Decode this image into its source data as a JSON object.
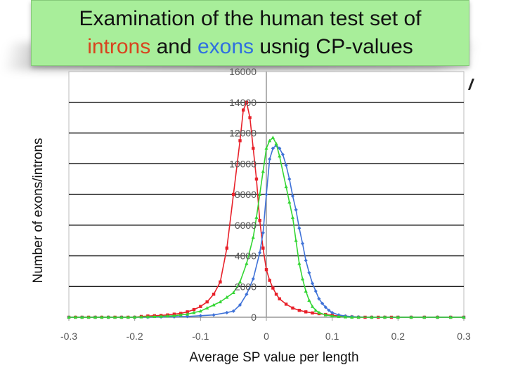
{
  "title": {
    "line1": "Examination of the human test set of",
    "line2_word1": "introns",
    "line2_and": " and ",
    "line2_word2": "exons",
    "line2_rest": " usnig CP-values"
  },
  "colors": {
    "title_bg": "#a8ee9a",
    "introns": "#d8441e",
    "exons": "#2f6fe0",
    "series_red": "#e8212a",
    "series_blue": "#3f72d8",
    "series_green": "#34d634"
  },
  "chart_data": {
    "type": "line",
    "xlabel": "Average SP value per length",
    "ylabel": "Number of exons/introns",
    "xlim": [
      -0.3,
      0.3
    ],
    "ylim": [
      0,
      16000
    ],
    "xticks": [
      "-0.3",
      "-0.2",
      "-0.1",
      "0",
      "0.1",
      "0.2",
      "0.3"
    ],
    "yticks": [
      "0",
      "2000",
      "4000",
      "6000",
      "8000",
      "10000",
      "12000",
      "14000",
      "16000"
    ],
    "grid": "horizontal",
    "legend": "none",
    "series": [
      {
        "color": "#e8212a",
        "marker": "square",
        "points": [
          [
            -0.3,
            0
          ],
          [
            -0.29,
            0
          ],
          [
            -0.28,
            0
          ],
          [
            -0.27,
            0
          ],
          [
            -0.26,
            0
          ],
          [
            -0.25,
            0
          ],
          [
            -0.24,
            0
          ],
          [
            -0.23,
            0
          ],
          [
            -0.22,
            0
          ],
          [
            -0.21,
            0
          ],
          [
            -0.2,
            0
          ],
          [
            -0.19,
            50
          ],
          [
            -0.18,
            80
          ],
          [
            -0.17,
            100
          ],
          [
            -0.16,
            120
          ],
          [
            -0.15,
            150
          ],
          [
            -0.14,
            200
          ],
          [
            -0.13,
            250
          ],
          [
            -0.12,
            350
          ],
          [
            -0.11,
            500
          ],
          [
            -0.1,
            700
          ],
          [
            -0.09,
            1000
          ],
          [
            -0.08,
            1500
          ],
          [
            -0.07,
            2300
          ],
          [
            -0.06,
            4500
          ],
          [
            -0.05,
            8000
          ],
          [
            -0.04,
            11500
          ],
          [
            -0.035,
            13500
          ],
          [
            -0.03,
            14000
          ],
          [
            -0.025,
            13000
          ],
          [
            -0.02,
            11000
          ],
          [
            -0.015,
            9000
          ],
          [
            -0.01,
            6300
          ],
          [
            -0.005,
            4500
          ],
          [
            0,
            3100
          ],
          [
            0.005,
            2400
          ],
          [
            0.01,
            1900
          ],
          [
            0.015,
            1500
          ],
          [
            0.02,
            1200
          ],
          [
            0.03,
            850
          ],
          [
            0.04,
            600
          ],
          [
            0.05,
            450
          ],
          [
            0.06,
            350
          ],
          [
            0.07,
            280
          ],
          [
            0.08,
            230
          ],
          [
            0.09,
            180
          ],
          [
            0.1,
            130
          ],
          [
            0.11,
            80
          ],
          [
            0.12,
            50
          ],
          [
            0.13,
            20
          ],
          [
            0.14,
            0
          ],
          [
            0.15,
            0
          ],
          [
            0.16,
            0
          ],
          [
            0.17,
            0
          ],
          [
            0.18,
            0
          ],
          [
            0.19,
            0
          ],
          [
            0.2,
            0
          ],
          [
            0.22,
            0
          ],
          [
            0.24,
            0
          ],
          [
            0.26,
            0
          ],
          [
            0.28,
            0
          ],
          [
            0.3,
            0
          ]
        ]
      },
      {
        "color": "#3f72d8",
        "marker": "diamond",
        "points": [
          [
            -0.3,
            0
          ],
          [
            -0.28,
            0
          ],
          [
            -0.26,
            0
          ],
          [
            -0.24,
            0
          ],
          [
            -0.22,
            0
          ],
          [
            -0.2,
            0
          ],
          [
            -0.18,
            0
          ],
          [
            -0.16,
            20
          ],
          [
            -0.14,
            30
          ],
          [
            -0.12,
            50
          ],
          [
            -0.1,
            100
          ],
          [
            -0.08,
            150
          ],
          [
            -0.06,
            300
          ],
          [
            -0.05,
            400
          ],
          [
            -0.04,
            800
          ],
          [
            -0.03,
            1500
          ],
          [
            -0.02,
            2500
          ],
          [
            -0.01,
            4200
          ],
          [
            -0.005,
            5500
          ],
          [
            0,
            8000
          ],
          [
            0.005,
            10300
          ],
          [
            0.01,
            11000
          ],
          [
            0.015,
            11200
          ],
          [
            0.02,
            11000
          ],
          [
            0.025,
            10600
          ],
          [
            0.03,
            9900
          ],
          [
            0.035,
            9000
          ],
          [
            0.04,
            7900
          ],
          [
            0.045,
            7000
          ],
          [
            0.05,
            5800
          ],
          [
            0.055,
            4800
          ],
          [
            0.06,
            3700
          ],
          [
            0.065,
            2900
          ],
          [
            0.07,
            2200
          ],
          [
            0.075,
            1700
          ],
          [
            0.08,
            1200
          ],
          [
            0.085,
            900
          ],
          [
            0.09,
            650
          ],
          [
            0.095,
            450
          ],
          [
            0.1,
            300
          ],
          [
            0.11,
            150
          ],
          [
            0.12,
            80
          ],
          [
            0.13,
            40
          ],
          [
            0.14,
            20
          ],
          [
            0.16,
            0
          ],
          [
            0.18,
            0
          ],
          [
            0.2,
            0
          ],
          [
            0.22,
            0
          ],
          [
            0.24,
            0
          ],
          [
            0.26,
            0
          ],
          [
            0.28,
            0
          ],
          [
            0.3,
            0
          ]
        ]
      },
      {
        "color": "#34d634",
        "marker": "triangle",
        "points": [
          [
            -0.3,
            0
          ],
          [
            -0.29,
            0
          ],
          [
            -0.28,
            0
          ],
          [
            -0.27,
            0
          ],
          [
            -0.26,
            0
          ],
          [
            -0.25,
            0
          ],
          [
            -0.24,
            0
          ],
          [
            -0.23,
            0
          ],
          [
            -0.22,
            0
          ],
          [
            -0.21,
            0
          ],
          [
            -0.2,
            0
          ],
          [
            -0.19,
            20
          ],
          [
            -0.18,
            30
          ],
          [
            -0.17,
            40
          ],
          [
            -0.16,
            60
          ],
          [
            -0.15,
            80
          ],
          [
            -0.14,
            100
          ],
          [
            -0.13,
            150
          ],
          [
            -0.12,
            200
          ],
          [
            -0.11,
            300
          ],
          [
            -0.1,
            400
          ],
          [
            -0.09,
            600
          ],
          [
            -0.08,
            800
          ],
          [
            -0.07,
            1000
          ],
          [
            -0.06,
            1300
          ],
          [
            -0.05,
            1600
          ],
          [
            -0.04,
            2300
          ],
          [
            -0.03,
            3500
          ],
          [
            -0.02,
            5200
          ],
          [
            -0.015,
            6500
          ],
          [
            -0.01,
            8000
          ],
          [
            -0.005,
            9500
          ],
          [
            0,
            11000
          ],
          [
            0.005,
            11500
          ],
          [
            0.01,
            11700
          ],
          [
            0.015,
            11300
          ],
          [
            0.02,
            10500
          ],
          [
            0.03,
            8500
          ],
          [
            0.035,
            7500
          ],
          [
            0.04,
            6500
          ],
          [
            0.045,
            5000
          ],
          [
            0.05,
            3500
          ],
          [
            0.055,
            2500
          ],
          [
            0.06,
            1700
          ],
          [
            0.065,
            1100
          ],
          [
            0.07,
            700
          ],
          [
            0.075,
            450
          ],
          [
            0.08,
            300
          ],
          [
            0.09,
            150
          ],
          [
            0.1,
            80
          ],
          [
            0.11,
            40
          ],
          [
            0.12,
            20
          ],
          [
            0.13,
            0
          ],
          [
            0.14,
            0
          ],
          [
            0.16,
            0
          ],
          [
            0.18,
            0
          ],
          [
            0.2,
            0
          ],
          [
            0.22,
            0
          ],
          [
            0.24,
            0
          ],
          [
            0.26,
            0
          ],
          [
            0.28,
            0
          ],
          [
            0.3,
            0
          ]
        ]
      }
    ]
  }
}
